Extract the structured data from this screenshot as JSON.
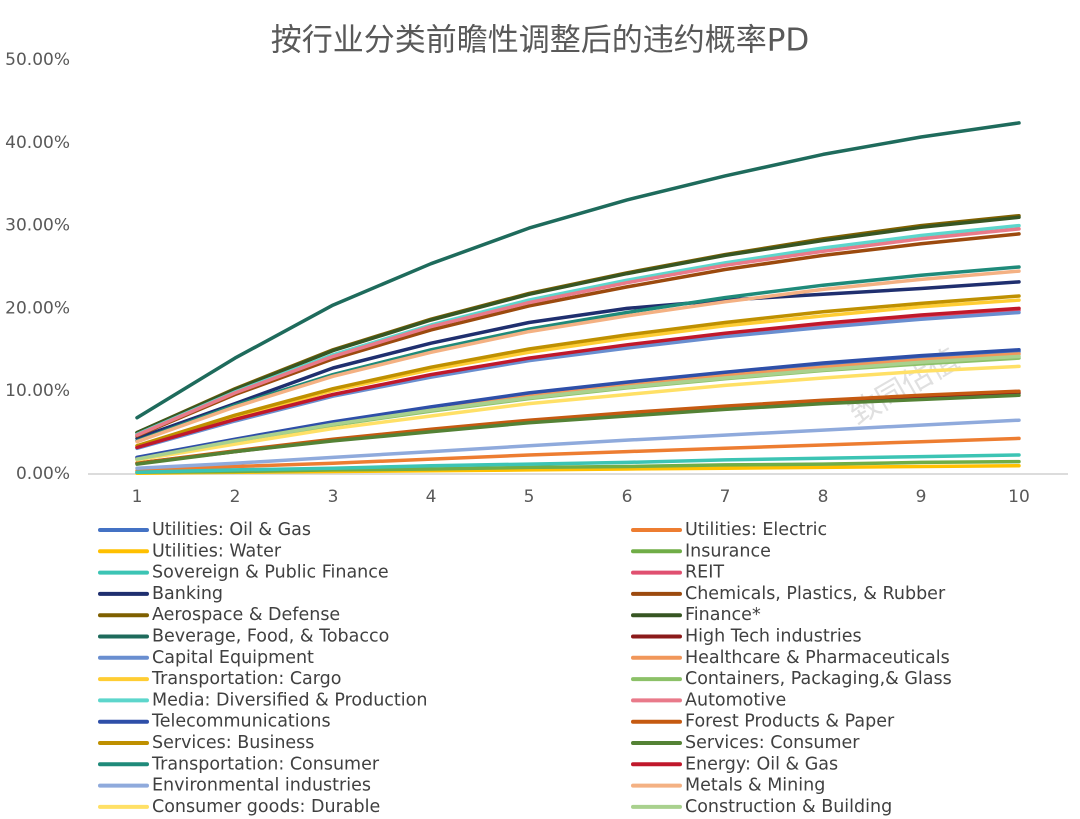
{
  "chart_data": {
    "type": "line",
    "title": "按行业分类前瞻性调整后的违约概率PD",
    "watermark": "致同估值",
    "x": [
      1,
      2,
      3,
      4,
      5,
      6,
      7,
      8,
      9,
      10
    ],
    "xlim": [
      0.5,
      10.5
    ],
    "xticks": [
      1,
      2,
      3,
      4,
      5,
      6,
      7,
      8,
      9,
      10
    ],
    "ylim": [
      0,
      50
    ],
    "yticks": [
      {
        "value": 0,
        "label": "0.00%"
      },
      {
        "value": 10,
        "label": "10.00%"
      },
      {
        "value": 20,
        "label": "20.00%"
      },
      {
        "value": 30,
        "label": "30.00%"
      },
      {
        "value": 40,
        "label": "40.00%"
      },
      {
        "value": 50,
        "label": "50.00%"
      }
    ],
    "grid": false,
    "legend": "bottom",
    "series": [
      {
        "name": "Utilities: Oil & Gas",
        "color": "#4472c4",
        "values": [
          1.9,
          4.1,
          6.2,
          8.0,
          9.6,
          11.0,
          12.1,
          13.2,
          14.1,
          14.8
        ]
      },
      {
        "name": "Utilities: Electric",
        "color": "#ed7d31",
        "values": [
          0.4,
          0.9,
          1.3,
          1.8,
          2.3,
          2.7,
          3.1,
          3.5,
          3.9,
          4.3
        ]
      },
      {
        "name": "Utilities: Water",
        "color": "#ffc000",
        "values": [
          0.1,
          0.2,
          0.3,
          0.4,
          0.5,
          0.6,
          0.7,
          0.8,
          0.9,
          1.0
        ]
      },
      {
        "name": "Insurance",
        "color": "#70ad47",
        "values": [
          0.2,
          0.3,
          0.5,
          0.6,
          0.8,
          0.9,
          1.1,
          1.2,
          1.4,
          1.5
        ]
      },
      {
        "name": "Sovereign & Public Finance",
        "color": "#3cc4b4",
        "values": [
          0.2,
          0.5,
          0.7,
          1.0,
          1.2,
          1.4,
          1.7,
          1.9,
          2.1,
          2.3
        ]
      },
      {
        "name": "REIT",
        "color": "#e05070",
        "values": [
          3.2,
          6.5,
          9.5,
          11.9,
          13.9,
          15.4,
          16.8,
          18.0,
          19.0,
          19.8
        ]
      },
      {
        "name": "Banking",
        "color": "#1f2f6f",
        "values": [
          4.3,
          8.5,
          12.8,
          15.8,
          18.3,
          20.0,
          21.0,
          21.7,
          22.4,
          23.2
        ]
      },
      {
        "name": "Chemicals, Plastics, & Rubber",
        "color": "#9c4a0e",
        "values": [
          4.6,
          9.6,
          13.9,
          17.4,
          20.3,
          22.6,
          24.7,
          26.4,
          27.8,
          29.0
        ]
      },
      {
        "name": "Aerospace & Defense",
        "color": "#7f6000",
        "values": [
          5.0,
          10.3,
          15.0,
          18.7,
          21.8,
          24.3,
          26.5,
          28.4,
          30.0,
          31.2
        ]
      },
      {
        "name": "Finance*",
        "color": "#375623",
        "values": [
          5.0,
          10.2,
          14.9,
          18.6,
          21.7,
          24.2,
          26.4,
          28.2,
          29.8,
          31.0
        ]
      },
      {
        "name": "Beverage, Food, & Tobacco",
        "color": "#1e6b5c",
        "values": [
          6.8,
          14.0,
          20.4,
          25.4,
          29.7,
          33.1,
          36.0,
          38.6,
          40.7,
          42.4
        ]
      },
      {
        "name": "High Tech industries",
        "color": "#8b1a1a",
        "values": [
          1.3,
          2.7,
          4.1,
          5.3,
          6.4,
          7.3,
          8.0,
          8.7,
          9.3,
          9.8
        ]
      },
      {
        "name": "Capital Equipment",
        "color": "#698ed0",
        "values": [
          3.1,
          6.4,
          9.4,
          11.7,
          13.7,
          15.2,
          16.6,
          17.7,
          18.7,
          19.5
        ]
      },
      {
        "name": "Healthcare & Pharmaceuticals",
        "color": "#f1975a",
        "values": [
          1.9,
          4.1,
          6.1,
          7.8,
          9.4,
          10.7,
          11.9,
          12.9,
          13.8,
          14.5
        ]
      },
      {
        "name": "Transportation: Cargo",
        "color": "#ffcd33",
        "values": [
          3.4,
          6.9,
          10.1,
          12.6,
          14.7,
          16.4,
          17.9,
          19.1,
          20.2,
          21.0
        ]
      },
      {
        "name": "Containers, Packaging,& Glass",
        "color": "#8cc168",
        "values": [
          1.8,
          3.9,
          5.9,
          7.6,
          9.1,
          10.4,
          11.5,
          12.5,
          13.3,
          14.0
        ]
      },
      {
        "name": "Media: Diversified & Production",
        "color": "#5dd6cc",
        "values": [
          4.8,
          9.9,
          14.4,
          18.0,
          21.0,
          23.4,
          25.5,
          27.3,
          28.8,
          30.0
        ]
      },
      {
        "name": "Automotive",
        "color": "#e97a8a",
        "values": [
          4.7,
          9.8,
          14.2,
          17.8,
          20.7,
          23.1,
          25.2,
          26.9,
          28.4,
          29.6
        ]
      },
      {
        "name": "Telecommunications",
        "color": "#2e4fa8",
        "values": [
          2.0,
          4.2,
          6.3,
          8.1,
          9.8,
          11.1,
          12.3,
          13.4,
          14.3,
          15.0
        ]
      },
      {
        "name": "Forest Products & Paper",
        "color": "#c55a11",
        "values": [
          1.3,
          2.8,
          4.2,
          5.4,
          6.5,
          7.4,
          8.2,
          8.9,
          9.5,
          10.0
        ]
      },
      {
        "name": "Services: Business",
        "color": "#bf9000",
        "values": [
          3.4,
          7.1,
          10.3,
          12.9,
          15.1,
          16.8,
          18.3,
          19.6,
          20.6,
          21.5
        ]
      },
      {
        "name": "Services: Consumer",
        "color": "#548235",
        "values": [
          1.2,
          2.7,
          4.0,
          5.1,
          6.2,
          7.0,
          7.8,
          8.5,
          9.0,
          9.5
        ]
      },
      {
        "name": "Transportation: Consumer",
        "color": "#1f8a7a",
        "values": [
          4.0,
          8.3,
          12.0,
          15.0,
          17.5,
          19.5,
          21.3,
          22.8,
          24.0,
          25.0
        ]
      },
      {
        "name": "Energy: Oil & Gas",
        "color": "#c0182b",
        "values": [
          3.2,
          6.6,
          9.6,
          12.0,
          14.0,
          15.6,
          17.0,
          18.2,
          19.2,
          20.0
        ]
      },
      {
        "name": "Environmental industries",
        "color": "#8faadc",
        "values": [
          0.7,
          1.3,
          2.0,
          2.7,
          3.4,
          4.1,
          4.7,
          5.3,
          5.9,
          6.5
        ]
      },
      {
        "name": "Metals & Mining",
        "color": "#f4b183",
        "values": [
          3.9,
          8.1,
          11.8,
          14.7,
          17.2,
          19.1,
          20.8,
          22.3,
          23.5,
          24.5
        ]
      },
      {
        "name": "Consumer goods: Durable",
        "color": "#ffe066",
        "values": [
          1.7,
          3.6,
          5.5,
          7.0,
          8.5,
          9.6,
          10.7,
          11.6,
          12.4,
          13.0
        ]
      },
      {
        "name": "Construction & Building",
        "color": "#a9d18e",
        "values": [
          1.8,
          4.0,
          6.0,
          7.7,
          9.2,
          10.5,
          11.6,
          12.6,
          13.5,
          14.2
        ]
      }
    ]
  }
}
